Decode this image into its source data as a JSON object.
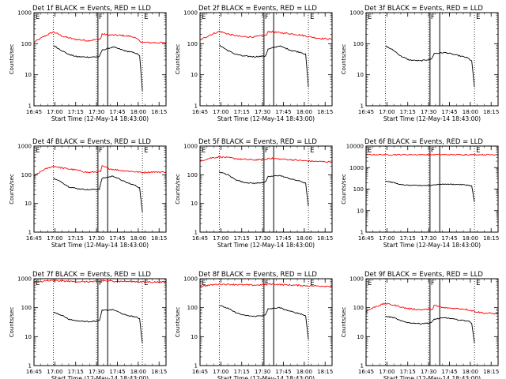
{
  "figure": {
    "xlabel": "Start Time (12-May-14 18:43:00)",
    "ylabel": "Counts/sec",
    "x_ticks": [
      "16:45",
      "17:00",
      "17:15",
      "17:30",
      "17:45",
      "18:00",
      "18:15"
    ],
    "y_tick_labels": [
      "1",
      "10",
      "100",
      "1000"
    ],
    "markers": {
      "E1": "E",
      "F": "F",
      "E2": "E"
    },
    "colors": {
      "events": "#000000",
      "lld": "#ff0000"
    }
  },
  "chart_data": [
    {
      "type": "line",
      "title": "Det 1f BLACK = Events, RED = LLD",
      "y_scale": "log",
      "ylim": [
        1,
        1000
      ],
      "xlim": [
        "16:45",
        "18:20"
      ],
      "events_series": {
        "x": [
          "16:59",
          "17:05",
          "17:10",
          "17:16",
          "17:24",
          "17:32",
          "17:34",
          "17:42",
          "17:51",
          "17:58",
          "18:01",
          "18:03"
        ],
        "values": [
          88,
          60,
          45,
          38,
          37,
          38,
          62,
          78,
          58,
          50,
          42,
          3
        ]
      },
      "lld_series": {
        "x": [
          "16:45",
          "16:52",
          "16:59",
          "17:06",
          "17:14",
          "17:24",
          "17:33",
          "17:34",
          "17:40",
          "17:48",
          "17:56",
          "18:03",
          "18:10",
          "18:20"
        ],
        "values": [
          110,
          170,
          240,
          170,
          140,
          125,
          145,
          205,
          190,
          185,
          170,
          110,
          108,
          108
        ]
      },
      "vlines": {
        "solid": [
          "17:31",
          "17:38"
        ],
        "dotted": [
          "16:59",
          "17:30",
          "18:03"
        ]
      }
    },
    {
      "type": "line",
      "title": "Det 2f BLACK = Events, RED = LLD",
      "y_scale": "log",
      "ylim": [
        1,
        1000
      ],
      "xlim": [
        "16:45",
        "18:20"
      ],
      "events_series": {
        "x": [
          "16:59",
          "17:05",
          "17:10",
          "17:16",
          "17:24",
          "17:32",
          "17:34",
          "17:42",
          "17:51",
          "17:58",
          "18:01",
          "18:03"
        ],
        "values": [
          90,
          60,
          47,
          40,
          38,
          40,
          66,
          85,
          60,
          52,
          45,
          4
        ]
      },
      "lld_series": {
        "x": [
          "16:45",
          "16:52",
          "16:59",
          "17:06",
          "17:14",
          "17:24",
          "17:33",
          "17:34",
          "17:40",
          "17:48",
          "17:56",
          "18:03",
          "18:10",
          "18:20"
        ],
        "values": [
          130,
          190,
          250,
          200,
          170,
          165,
          190,
          250,
          230,
          215,
          195,
          170,
          150,
          140
        ]
      },
      "vlines": {
        "solid": [
          "17:31",
          "17:38"
        ],
        "dotted": [
          "16:59",
          "17:30",
          "18:03"
        ]
      }
    },
    {
      "type": "line",
      "title": "Det 3f BLACK = Events, RED = LLD",
      "y_scale": "log",
      "ylim": [
        1,
        1000
      ],
      "xlim": [
        "16:45",
        "18:20"
      ],
      "events_series": {
        "x": [
          "16:59",
          "17:05",
          "17:10",
          "17:16",
          "17:24",
          "17:32",
          "17:34",
          "17:42",
          "17:51",
          "17:58",
          "18:01",
          "18:03"
        ],
        "values": [
          85,
          60,
          40,
          30,
          28,
          32,
          48,
          52,
          42,
          35,
          28,
          4
        ]
      },
      "lld_series": null,
      "vlines": {
        "solid": [
          "17:31",
          "17:38"
        ],
        "dotted": [
          "16:59",
          "17:30",
          "18:03"
        ]
      }
    },
    {
      "type": "line",
      "title": "Det 4f BLACK = Events, RED = LLD",
      "y_scale": "log",
      "ylim": [
        1,
        1000
      ],
      "xlim": [
        "16:45",
        "18:20"
      ],
      "events_series": {
        "x": [
          "16:59",
          "17:05",
          "17:10",
          "17:16",
          "17:24",
          "17:32",
          "17:34",
          "17:42",
          "17:51",
          "17:58",
          "18:01",
          "18:03"
        ],
        "values": [
          75,
          55,
          38,
          33,
          30,
          32,
          75,
          90,
          55,
          42,
          35,
          5
        ]
      },
      "lld_series": {
        "x": [
          "16:45",
          "16:52",
          "16:59",
          "17:06",
          "17:14",
          "17:24",
          "17:33",
          "17:34",
          "17:40",
          "17:48",
          "17:56",
          "18:03",
          "18:10",
          "18:20"
        ],
        "values": [
          90,
          150,
          200,
          170,
          150,
          120,
          130,
          200,
          160,
          140,
          130,
          120,
          125,
          125
        ]
      },
      "vlines": {
        "solid": [
          "17:31",
          "17:38"
        ],
        "dotted": [
          "16:59",
          "17:30",
          "18:03"
        ]
      }
    },
    {
      "type": "line",
      "title": "Det 5f BLACK = Events, RED = LLD",
      "y_scale": "log",
      "ylim": [
        1,
        1000
      ],
      "xlim": [
        "16:45",
        "18:20"
      ],
      "events_series": {
        "x": [
          "16:59",
          "17:05",
          "17:10",
          "17:16",
          "17:24",
          "17:32",
          "17:34",
          "17:42",
          "17:51",
          "17:58",
          "18:01",
          "18:03"
        ],
        "values": [
          125,
          100,
          70,
          55,
          50,
          55,
          85,
          95,
          70,
          58,
          50,
          8
        ]
      },
      "lld_series": {
        "x": [
          "16:45",
          "16:52",
          "16:59",
          "17:06",
          "17:14",
          "17:24",
          "17:33",
          "17:34",
          "17:40",
          "17:48",
          "17:56",
          "18:03",
          "18:10",
          "18:20"
        ],
        "values": [
          300,
          380,
          420,
          390,
          350,
          330,
          340,
          380,
          360,
          340,
          320,
          300,
          290,
          280
        ]
      },
      "vlines": {
        "solid": [
          "17:31",
          "17:38"
        ],
        "dotted": [
          "16:59",
          "17:30",
          "18:03"
        ]
      }
    },
    {
      "type": "line",
      "title": "Det 6f BLACK = Events, RED = LLD",
      "y_scale": "log",
      "ylim": [
        1,
        10000
      ],
      "xlim": [
        "16:45",
        "18:20"
      ],
      "events_series": {
        "x": [
          "16:59",
          "17:05",
          "17:10",
          "17:16",
          "17:24",
          "17:32",
          "17:34",
          "17:42",
          "17:51",
          "17:58",
          "18:01",
          "18:03"
        ],
        "values": [
          240,
          200,
          160,
          150,
          148,
          150,
          160,
          170,
          165,
          155,
          140,
          25
        ]
      },
      "lld_series": {
        "x": [
          "16:45",
          "18:20"
        ],
        "values": [
          4000,
          4000
        ]
      },
      "vlines": {
        "solid": [
          "17:31",
          "17:38"
        ],
        "dotted": [
          "16:59",
          "17:30",
          "18:03"
        ]
      }
    },
    {
      "type": "line",
      "title": "Det 7f BLACK = Events, RED = LLD",
      "y_scale": "log",
      "ylim": [
        1,
        1000
      ],
      "xlim": [
        "16:45",
        "18:20"
      ],
      "events_series": {
        "x": [
          "16:59",
          "17:05",
          "17:10",
          "17:16",
          "17:24",
          "17:32",
          "17:34",
          "17:42",
          "17:51",
          "17:58",
          "18:01",
          "18:03"
        ],
        "values": [
          70,
          55,
          40,
          35,
          33,
          35,
          80,
          85,
          55,
          48,
          42,
          6
        ]
      },
      "lld_series": {
        "x": [
          "16:45",
          "16:52",
          "16:59",
          "17:06",
          "17:14",
          "17:24",
          "17:33",
          "17:34",
          "17:40",
          "17:48",
          "17:56",
          "18:03",
          "18:10",
          "18:20"
        ],
        "values": [
          750,
          820,
          860,
          830,
          800,
          780,
          800,
          850,
          830,
          810,
          800,
          780,
          770,
          760
        ]
      },
      "vlines": {
        "solid": [
          "17:31",
          "17:38"
        ],
        "dotted": [
          "16:59",
          "17:30",
          "18:03"
        ]
      }
    },
    {
      "type": "line",
      "title": "Det 8f BLACK = Events, RED = LLD",
      "y_scale": "log",
      "ylim": [
        1,
        1000
      ],
      "xlim": [
        "16:45",
        "18:20"
      ],
      "events_series": {
        "x": [
          "16:59",
          "17:05",
          "17:10",
          "17:16",
          "17:24",
          "17:32",
          "17:34",
          "17:42",
          "17:51",
          "17:58",
          "18:01",
          "18:03"
        ],
        "values": [
          120,
          95,
          70,
          55,
          50,
          55,
          90,
          100,
          72,
          60,
          52,
          8
        ]
      },
      "lld_series": {
        "x": [
          "16:45",
          "16:52",
          "16:59",
          "17:06",
          "17:14",
          "17:24",
          "17:33",
          "17:34",
          "17:40",
          "17:48",
          "17:56",
          "18:03",
          "18:10",
          "18:20"
        ],
        "values": [
          550,
          600,
          650,
          640,
          620,
          600,
          620,
          660,
          640,
          610,
          590,
          570,
          560,
          550
        ]
      },
      "vlines": {
        "solid": [
          "17:31",
          "17:38"
        ],
        "dotted": [
          "16:59",
          "17:30",
          "18:03"
        ]
      }
    },
    {
      "type": "line",
      "title": "Det 9f BLACK = Events, RED = LLD",
      "y_scale": "log",
      "ylim": [
        1,
        1000
      ],
      "xlim": [
        "16:45",
        "18:20"
      ],
      "events_series": {
        "x": [
          "16:59",
          "17:05",
          "17:10",
          "17:16",
          "17:24",
          "17:32",
          "17:34",
          "17:42",
          "17:51",
          "17:58",
          "18:01",
          "18:03"
        ],
        "values": [
          50,
          45,
          35,
          30,
          28,
          30,
          40,
          45,
          38,
          35,
          30,
          6
        ]
      },
      "lld_series": {
        "x": [
          "16:45",
          "16:52",
          "16:59",
          "17:06",
          "17:14",
          "17:24",
          "17:33",
          "17:34",
          "17:40",
          "17:48",
          "17:56",
          "18:03",
          "18:10",
          "18:20"
        ],
        "values": [
          75,
          110,
          140,
          120,
          95,
          85,
          90,
          120,
          100,
          95,
          90,
          75,
          65,
          62
        ]
      },
      "vlines": {
        "solid": [
          "17:31",
          "17:38"
        ],
        "dotted": [
          "16:59",
          "17:30",
          "18:03"
        ]
      }
    }
  ]
}
